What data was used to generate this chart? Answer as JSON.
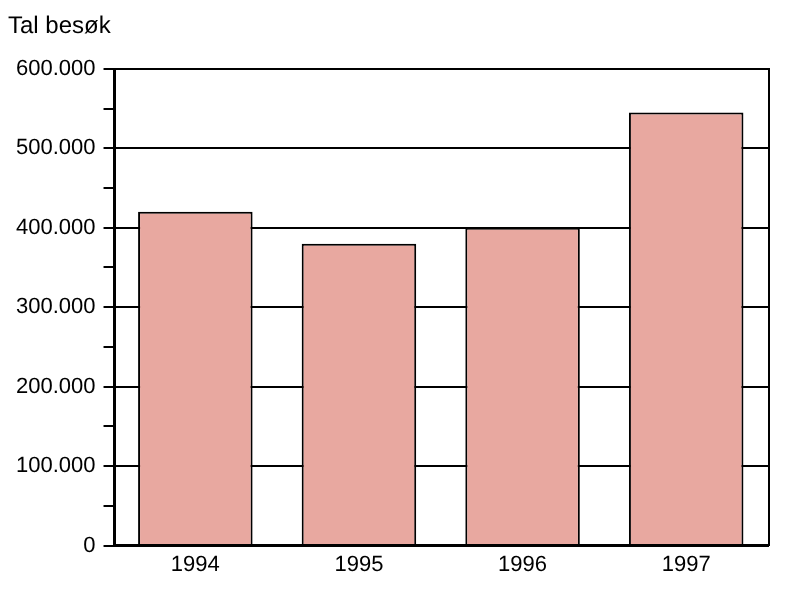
{
  "chart_data": {
    "type": "bar",
    "ylabel": "Tal besøk",
    "categories": [
      "1994",
      "1995",
      "1996",
      "1997"
    ],
    "series": [
      {
        "color": "#e8a8a0",
        "values": [
          420000,
          380000,
          400000,
          545000
        ]
      }
    ],
    "ylim": [
      0,
      600000
    ],
    "yticks": [
      {
        "value": 0,
        "label": "0"
      },
      {
        "value": 50000,
        "label": null
      },
      {
        "value": 100000,
        "label": "100.000"
      },
      {
        "value": 150000,
        "label": null
      },
      {
        "value": 200000,
        "label": "200.000"
      },
      {
        "value": 250000,
        "label": null
      },
      {
        "value": 300000,
        "label": "300.000"
      },
      {
        "value": 350000,
        "label": null
      },
      {
        "value": 400000,
        "label": "400.000"
      },
      {
        "value": 450000,
        "label": null
      },
      {
        "value": 500000,
        "label": "500.000"
      },
      {
        "value": 550000,
        "label": null
      },
      {
        "value": 600000,
        "label": "600.000"
      }
    ],
    "grid": "y",
    "legend": false
  }
}
